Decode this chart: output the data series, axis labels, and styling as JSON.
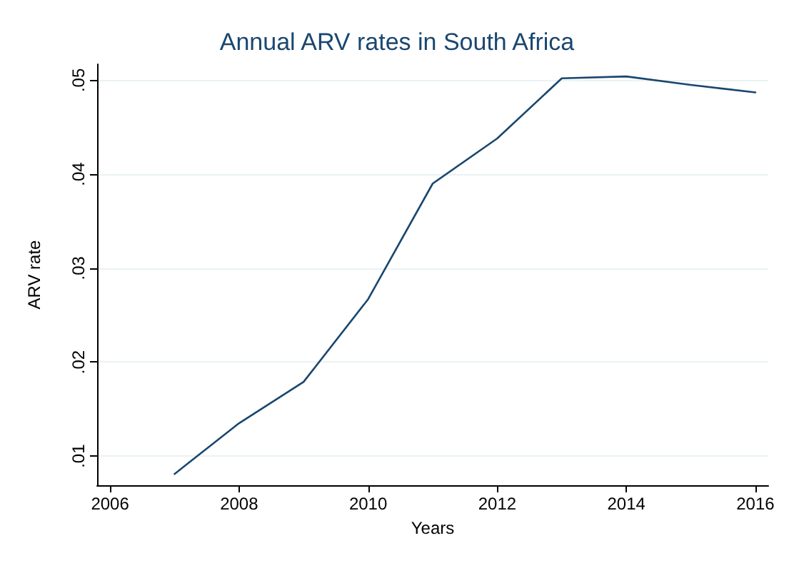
{
  "chart_data": {
    "type": "line",
    "title": "Annual ARV rates in South Africa",
    "xlabel": "Years",
    "ylabel": "ARV rate",
    "x": [
      2007,
      2008,
      2009,
      2010,
      2011,
      2012,
      2013,
      2014,
      2015,
      2016
    ],
    "series": [
      {
        "color": "#1a476f",
        "values": [
          0.0081,
          0.0135,
          0.0179,
          0.0267,
          0.039,
          0.0438,
          0.0502,
          0.0504,
          0.0495,
          0.0487
        ]
      }
    ],
    "xlim": [
      2005.8,
      2016.2
    ],
    "xticks": [
      2006,
      2008,
      2010,
      2012,
      2014,
      2016
    ],
    "ylim": [
      0.0069,
      0.0517
    ],
    "yticks": [
      {
        "value": 0.01,
        "label": ".01"
      },
      {
        "value": 0.02,
        "label": ".02"
      },
      {
        "value": 0.03,
        "label": ".03"
      },
      {
        "value": 0.04,
        "label": ".04"
      },
      {
        "value": 0.05,
        "label": ".05"
      }
    ],
    "grid": "y",
    "marker": "none",
    "line_style": "solid"
  }
}
